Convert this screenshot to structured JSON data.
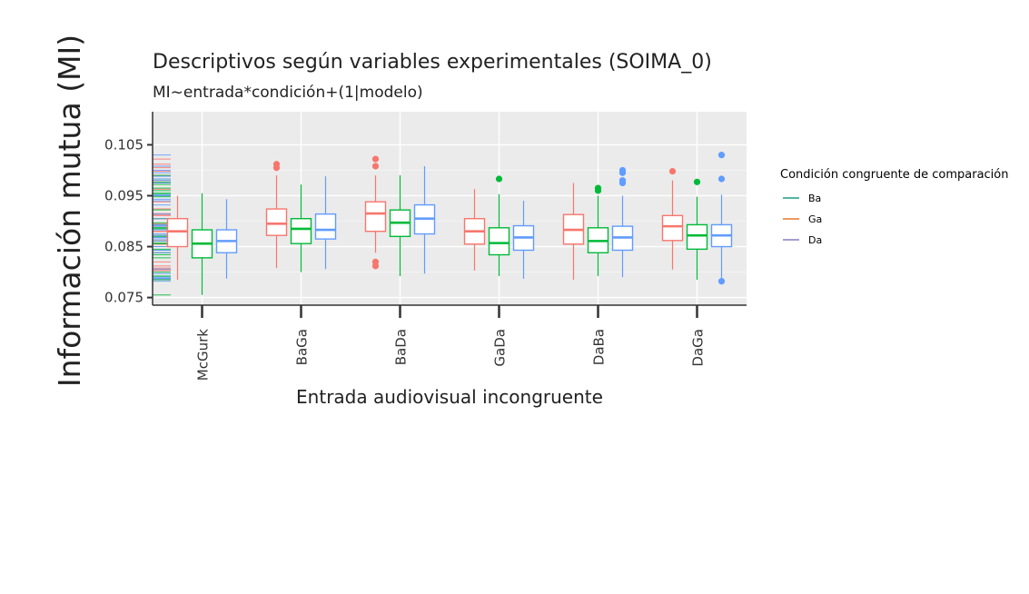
{
  "chart_data": {
    "type": "box",
    "title": "Descriptivos según variables experimentales (SOIMA_0)",
    "subtitle": "MI~entrada*condición+(1|modelo)",
    "xlabel": "Entrada audiovisual incongruente",
    "ylabel": "Información mutua (MI)",
    "ylim": [
      0.0735,
      0.1115
    ],
    "yticks": [
      "0.075",
      "0.085",
      "0.095",
      "0.105"
    ],
    "ytick_values": [
      0.075,
      0.085,
      0.095,
      0.105
    ],
    "categories": [
      "McGurk",
      "BaGa",
      "BaDa",
      "GaDa",
      "DaBa",
      "DaGa"
    ],
    "legend": {
      "title": "Condición congruente de comparación",
      "position": "right",
      "entries": [
        {
          "label": "Ba",
          "color": "#1a9e85"
        },
        {
          "label": "Ga",
          "color": "#e8762c"
        },
        {
          "label": "Da",
          "color": "#8b7bbf"
        }
      ]
    },
    "grid": true,
    "series": [
      {
        "color": "#f8766d",
        "boxes": [
          {
            "low": 0.0785,
            "q1": 0.085,
            "median": 0.088,
            "q3": 0.0905,
            "high": 0.095,
            "outliers": []
          },
          {
            "low": 0.0808,
            "q1": 0.0872,
            "median": 0.0895,
            "q3": 0.0924,
            "high": 0.099,
            "outliers": [
              0.1005,
              0.1012
            ]
          },
          {
            "low": 0.0838,
            "q1": 0.088,
            "median": 0.0915,
            "q3": 0.0938,
            "high": 0.099,
            "outliers": [
              0.1008,
              0.1022,
              0.0812,
              0.082
            ]
          },
          {
            "low": 0.0803,
            "q1": 0.0855,
            "median": 0.088,
            "q3": 0.0905,
            "high": 0.0963,
            "outliers": []
          },
          {
            "low": 0.0785,
            "q1": 0.0855,
            "median": 0.0883,
            "q3": 0.0913,
            "high": 0.0975,
            "outliers": []
          },
          {
            "low": 0.0805,
            "q1": 0.0862,
            "median": 0.089,
            "q3": 0.0911,
            "high": 0.098,
            "outliers": [
              0.0998
            ]
          }
        ]
      },
      {
        "color": "#00ba38",
        "boxes": [
          {
            "low": 0.0755,
            "q1": 0.0828,
            "median": 0.0856,
            "q3": 0.0883,
            "high": 0.0955,
            "outliers": []
          },
          {
            "low": 0.08,
            "q1": 0.0856,
            "median": 0.0885,
            "q3": 0.0905,
            "high": 0.0972,
            "outliers": []
          },
          {
            "low": 0.0792,
            "q1": 0.087,
            "median": 0.0897,
            "q3": 0.0922,
            "high": 0.099,
            "outliers": []
          },
          {
            "low": 0.0792,
            "q1": 0.0834,
            "median": 0.0857,
            "q3": 0.0887,
            "high": 0.0953,
            "outliers": [
              0.0983
            ]
          },
          {
            "low": 0.0792,
            "q1": 0.0838,
            "median": 0.0861,
            "q3": 0.0887,
            "high": 0.095,
            "outliers": [
              0.096,
              0.0965
            ]
          },
          {
            "low": 0.0785,
            "q1": 0.0845,
            "median": 0.0872,
            "q3": 0.0893,
            "high": 0.0948,
            "outliers": [
              0.0977
            ]
          }
        ]
      },
      {
        "color": "#619cff",
        "boxes": [
          {
            "low": 0.0787,
            "q1": 0.0838,
            "median": 0.0861,
            "q3": 0.0883,
            "high": 0.0943,
            "outliers": []
          },
          {
            "low": 0.0806,
            "q1": 0.0865,
            "median": 0.0883,
            "q3": 0.0914,
            "high": 0.0988,
            "outliers": []
          },
          {
            "low": 0.0797,
            "q1": 0.0875,
            "median": 0.0905,
            "q3": 0.0932,
            "high": 0.1008,
            "outliers": []
          },
          {
            "low": 0.0787,
            "q1": 0.0843,
            "median": 0.0868,
            "q3": 0.0891,
            "high": 0.094,
            "outliers": []
          },
          {
            "low": 0.079,
            "q1": 0.0843,
            "median": 0.0868,
            "q3": 0.089,
            "high": 0.095,
            "outliers": [
              0.0975,
              0.098,
              0.0995,
              0.1
            ]
          },
          {
            "low": 0.0788,
            "q1": 0.085,
            "median": 0.0872,
            "q3": 0.0893,
            "high": 0.0952,
            "outliers": [
              0.0782,
              0.0983,
              0.103
            ]
          }
        ]
      }
    ]
  }
}
